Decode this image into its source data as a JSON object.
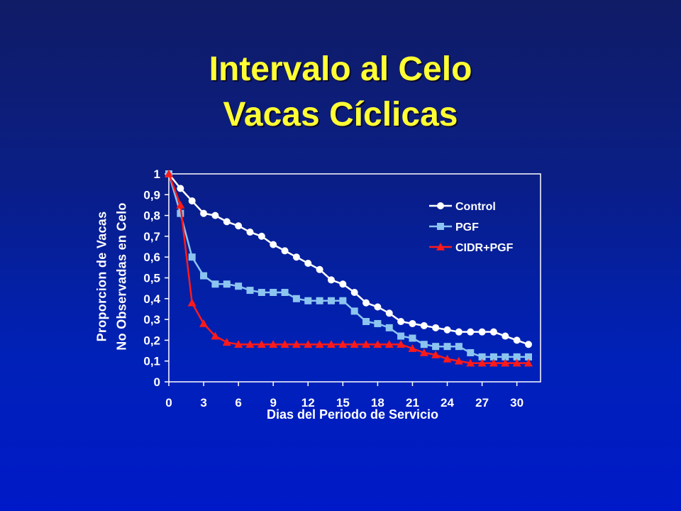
{
  "title": {
    "line1": "Intervalo al Celo",
    "line2": "Vacas Cíclicas"
  },
  "chart_data": {
    "type": "line",
    "xlabel": "Dias del Periodo de Servicio",
    "ylabel_line1": "Proporcion de Vacas",
    "ylabel_line2": "No Observadas en Celo",
    "xlim": [
      0,
      32
    ],
    "ylim": [
      0,
      1
    ],
    "xticks": [
      0,
      3,
      6,
      9,
      12,
      15,
      18,
      21,
      24,
      27,
      30
    ],
    "yticks": [
      0,
      0.1,
      0.2,
      0.3,
      0.4,
      0.5,
      0.6,
      0.7,
      0.8,
      0.9,
      1
    ],
    "ytick_labels": [
      "0",
      "0,1",
      "0,2",
      "0,3",
      "0,4",
      "0,5",
      "0,6",
      "0,7",
      "0,8",
      "0,9",
      "1"
    ],
    "x": [
      0,
      1,
      2,
      3,
      4,
      5,
      6,
      7,
      8,
      9,
      10,
      11,
      12,
      13,
      14,
      15,
      16,
      17,
      18,
      19,
      20,
      21,
      22,
      23,
      24,
      25,
      26,
      27,
      28,
      29,
      30,
      31
    ],
    "legend_position": "top-right",
    "series": [
      {
        "name": "Control",
        "color": "#ffffff",
        "marker": "circle",
        "values": [
          1,
          0.93,
          0.87,
          0.81,
          0.8,
          0.77,
          0.75,
          0.72,
          0.7,
          0.66,
          0.63,
          0.6,
          0.57,
          0.54,
          0.49,
          0.47,
          0.43,
          0.38,
          0.36,
          0.33,
          0.29,
          0.28,
          0.27,
          0.26,
          0.25,
          0.24,
          0.24,
          0.24,
          0.24,
          0.22,
          0.2,
          0.18
        ]
      },
      {
        "name": "PGF",
        "color": "#8cc4f0",
        "marker": "square",
        "values": [
          1,
          0.81,
          0.6,
          0.51,
          0.47,
          0.47,
          0.46,
          0.44,
          0.43,
          0.43,
          0.43,
          0.4,
          0.39,
          0.39,
          0.39,
          0.39,
          0.34,
          0.29,
          0.28,
          0.26,
          0.22,
          0.21,
          0.18,
          0.17,
          0.17,
          0.17,
          0.14,
          0.12,
          0.12,
          0.12,
          0.12,
          0.12
        ]
      },
      {
        "name": "CIDR+PGF",
        "color": "#ff1a1a",
        "marker": "triangle",
        "values": [
          1,
          0.85,
          0.38,
          0.28,
          0.22,
          0.19,
          0.18,
          0.18,
          0.18,
          0.18,
          0.18,
          0.18,
          0.18,
          0.18,
          0.18,
          0.18,
          0.18,
          0.18,
          0.18,
          0.18,
          0.18,
          0.16,
          0.14,
          0.13,
          0.11,
          0.1,
          0.09,
          0.09,
          0.09,
          0.09,
          0.09,
          0.09
        ]
      }
    ]
  }
}
